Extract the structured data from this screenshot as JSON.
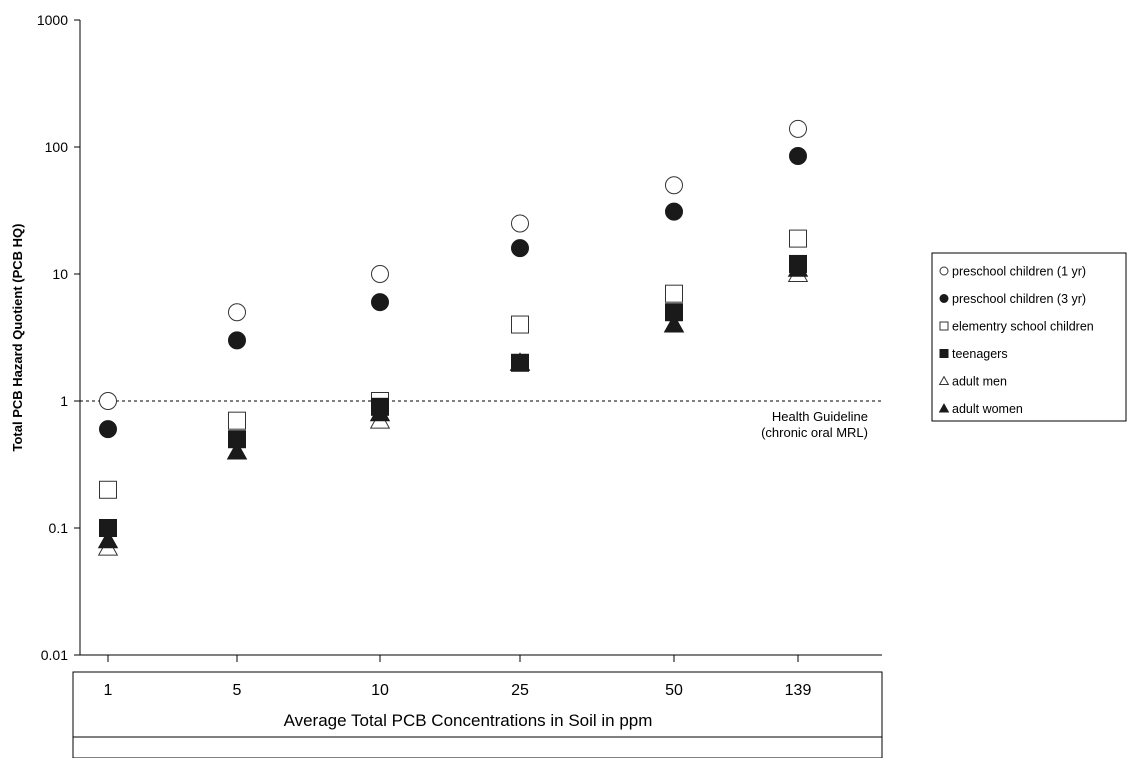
{
  "chart_data": {
    "type": "scatter",
    "ylabel": "Total PCB Hazard Quotient (PCB HQ)",
    "xlabel": "Average Total PCB Concentrations in Soil in ppm",
    "yscale": "log",
    "ylim": [
      0.01,
      1000
    ],
    "y_ticks": [
      "0.01",
      "0.1",
      "1",
      "10",
      "100",
      "1000"
    ],
    "categories": [
      "1",
      "5",
      "10",
      "25",
      "50",
      "139"
    ],
    "reference_line": {
      "y": 1,
      "style": "dashed",
      "label_line1": "Health Guideline",
      "label_line2": "(chronic oral MRL)"
    },
    "legend_position": "right",
    "series": [
      {
        "name": "preschool children (1 yr)",
        "marker": "circle-open",
        "values": [
          1,
          5,
          10,
          25,
          50,
          139
        ]
      },
      {
        "name": "preschool children (3 yr)",
        "marker": "circle-filled",
        "values": [
          0.6,
          3,
          6,
          16,
          31,
          85
        ]
      },
      {
        "name": "elementry school children",
        "marker": "square-open",
        "values": [
          0.2,
          0.7,
          1,
          4,
          7,
          19
        ]
      },
      {
        "name": "teenagers",
        "marker": "square-filled",
        "values": [
          0.1,
          0.5,
          0.9,
          2,
          5,
          12
        ]
      },
      {
        "name": "adult men",
        "marker": "triangle-open",
        "values": [
          0.07,
          0.4,
          0.7,
          2,
          4,
          10
        ]
      },
      {
        "name": "adult women",
        "marker": "triangle-filled",
        "values": [
          0.08,
          0.4,
          0.8,
          2,
          4,
          11
        ]
      }
    ]
  }
}
